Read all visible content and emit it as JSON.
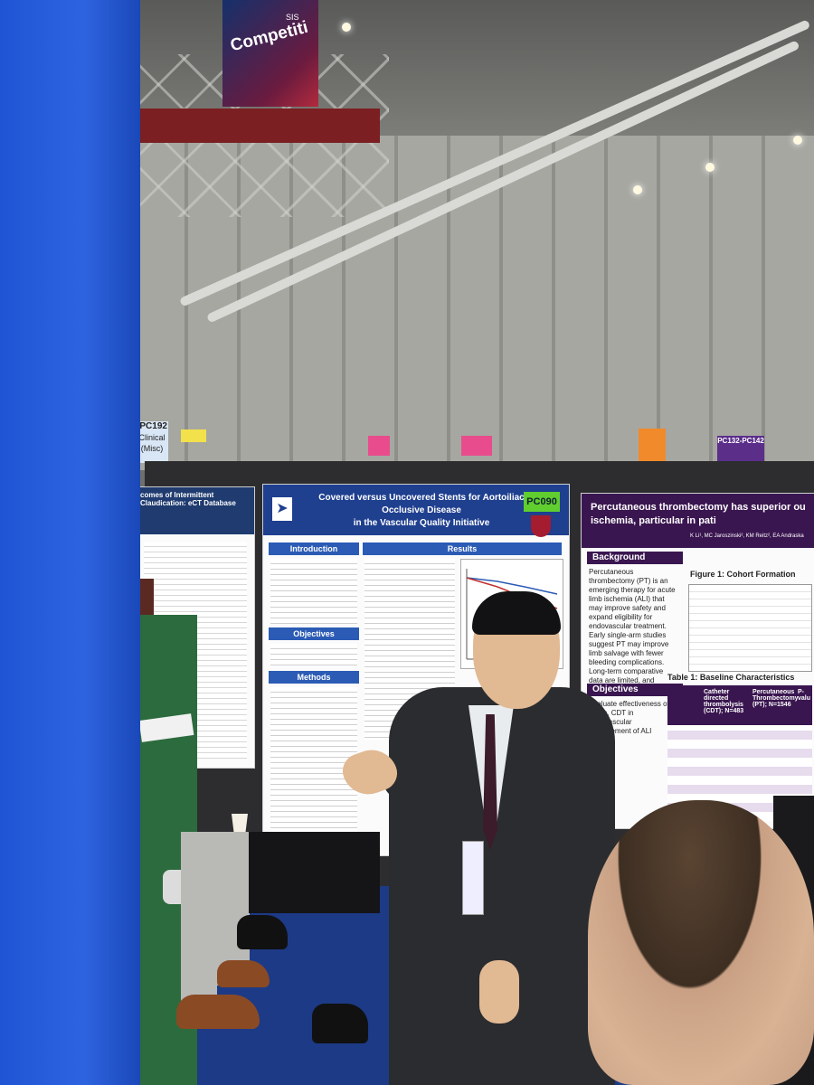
{
  "banner": {
    "text": "Competiti",
    "sub": "SIS"
  },
  "signs": {
    "pc192_code": "-PC192",
    "pc192_cat1": "Clinical",
    "pc192_cat2": "(Misc)",
    "purple_range": "PC132-PC142"
  },
  "poster_left": {
    "title": "comes of Intermittent Claudication: eCT Database"
  },
  "poster_center": {
    "code": "PC090",
    "title_line1": "Covered versus Uncovered Stents for Aortoiliac Occlusive Disease",
    "title_line2": "in the Vascular Quality Initiative",
    "introduction": "Introduction",
    "results": "Results",
    "objectives": "Objectives",
    "methods": "Methods"
  },
  "poster_right": {
    "title": "Percutaneous thrombectomy has superior ou ischemia, particular in pati",
    "authors": "K Li¹, MC Jaroszinski², KM Reitz², EA Andraska",
    "background": "Background",
    "background_text": "Percutaneous thrombectomy (PT) is an emerging therapy for acute limb ischemia (ALI) that may improve safety and expand eligibility for endovascular treatment. Early single-arm studies suggest PT may improve limb salvage with fewer bleeding complications. Long-term comparative data are limited, and guidelines remain unclear",
    "objectives": "Objectives",
    "objectives_text": "Evaluate effectiveness of PT vs. CDT in endovascular management of ALI",
    "figure1": "Figure 1: Cohort Formation",
    "table1": "Table 1: Baseline Characteristics",
    "table_head": [
      "Catheter directed thrombolysis (CDT); N=483",
      "Percutaneous Thrombectomy (PT); N=1546",
      "P-valu"
    ]
  },
  "colors": {
    "blue_frame": "#2e63e0",
    "center_header": "#1f3f8f",
    "right_header": "#3a1650",
    "code_badge": "#5fce2e"
  }
}
